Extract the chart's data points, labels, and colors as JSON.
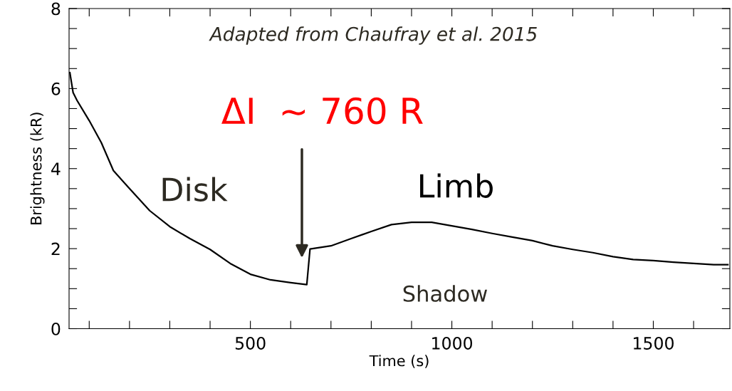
{
  "chart_data": {
    "type": "line",
    "xlabel": "Time (s)",
    "ylabel": "Brightness (kR)",
    "x": [
      52,
      60,
      70,
      100,
      130,
      160,
      200,
      250,
      300,
      350,
      400,
      450,
      500,
      550,
      600,
      640,
      648,
      700,
      750,
      800,
      850,
      900,
      950,
      1000,
      1050,
      1100,
      1150,
      1200,
      1250,
      1300,
      1350,
      1400,
      1450,
      1500,
      1550,
      1600,
      1650,
      1685
    ],
    "series": [
      {
        "color": "#000000",
        "values": [
          6.4,
          5.9,
          5.7,
          5.2,
          4.65,
          3.95,
          3.5,
          2.95,
          2.55,
          2.25,
          1.98,
          1.63,
          1.36,
          1.22,
          1.15,
          1.1,
          1.99,
          2.07,
          2.25,
          2.43,
          2.6,
          2.66,
          2.66,
          2.57,
          2.48,
          2.38,
          2.29,
          2.2,
          2.07,
          1.98,
          1.9,
          1.8,
          1.73,
          1.7,
          1.66,
          1.63,
          1.6,
          1.6
        ]
      }
    ],
    "xlim": [
      50,
      1690
    ],
    "ylim": [
      0,
      8
    ],
    "xticks": [
      {
        "value": 100,
        "label": null
      },
      {
        "value": 200,
        "label": null
      },
      {
        "value": 300,
        "label": null
      },
      {
        "value": 400,
        "label": null
      },
      500,
      {
        "value": 600,
        "label": null
      },
      {
        "value": 700,
        "label": null
      },
      {
        "value": 800,
        "label": null
      },
      {
        "value": 900,
        "label": null
      },
      1000,
      {
        "value": 1100,
        "label": null
      },
      {
        "value": 1200,
        "label": null
      },
      {
        "value": 1300,
        "label": null
      },
      {
        "value": 1400,
        "label": null
      },
      1500,
      {
        "value": 1600,
        "label": null
      }
    ],
    "yticks": [
      0,
      {
        "value": 0.5,
        "label": null
      },
      {
        "value": 1,
        "label": null
      },
      {
        "value": 1.5,
        "label": null
      },
      2,
      {
        "value": 2.5,
        "label": null
      },
      {
        "value": 3,
        "label": null
      },
      {
        "value": 3.5,
        "label": null
      },
      4,
      {
        "value": 4.5,
        "label": null
      },
      {
        "value": 5,
        "label": null
      },
      {
        "value": 5.5,
        "label": null
      },
      6,
      {
        "value": 6.5,
        "label": null
      },
      {
        "value": 7,
        "label": null
      },
      {
        "value": 7.5,
        "label": null
      },
      8
    ],
    "grid": false,
    "legend": false,
    "marker": "none",
    "line_style": "solid",
    "annotations": [
      "Adapted from Chaufray et al. 2015",
      "ΔI  ~ 760 R",
      "Disk",
      "Limb",
      "Shadow"
    ]
  }
}
